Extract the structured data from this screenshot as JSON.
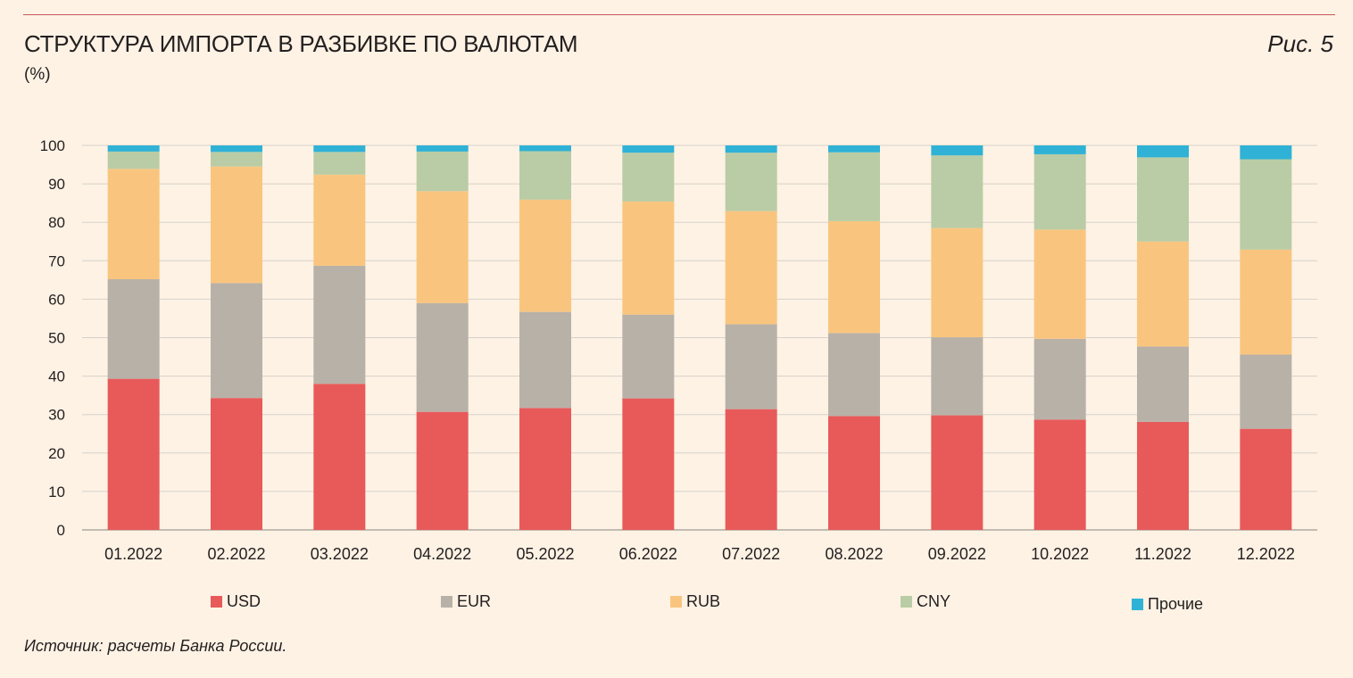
{
  "header": {
    "title": "СТРУКТУРА ИМПОРТА В РАЗБИВКЕ ПО ВАЛЮТАМ",
    "unit": "(%)",
    "figure_label": "Рис. 5"
  },
  "footer": {
    "source": "Источник: расчеты Банка России."
  },
  "colors": {
    "USD": "#e85a5a",
    "EUR": "#b8b1a8",
    "RUB": "#f9c57e",
    "CNY": "#bacca5",
    "Прочие": "#2fb2d6",
    "grid": "#d6d1cb",
    "background": "#fdf2e4"
  },
  "chart_data": {
    "type": "bar",
    "stacked": true,
    "categories": [
      "01.2022",
      "02.2022",
      "03.2022",
      "04.2022",
      "05.2022",
      "06.2022",
      "07.2022",
      "08.2022",
      "09.2022",
      "10.2022",
      "11.2022",
      "12.2022"
    ],
    "series": [
      {
        "name": "USD",
        "values": [
          39.3,
          34.3,
          38.0,
          30.7,
          31.7,
          34.2,
          31.4,
          29.6,
          29.8,
          28.7,
          28.1,
          26.3
        ]
      },
      {
        "name": "EUR",
        "values": [
          25.9,
          29.9,
          30.7,
          28.3,
          25.0,
          21.8,
          22.1,
          21.6,
          20.3,
          21.0,
          19.6,
          19.3
        ]
      },
      {
        "name": "RUB",
        "values": [
          28.7,
          30.3,
          23.7,
          29.1,
          29.2,
          29.4,
          29.4,
          29.1,
          28.4,
          28.4,
          27.3,
          27.3
        ]
      },
      {
        "name": "CNY",
        "values": [
          4.5,
          3.8,
          5.9,
          10.3,
          12.6,
          12.7,
          15.2,
          17.9,
          18.9,
          19.6,
          21.9,
          23.5
        ]
      },
      {
        "name": "Прочие",
        "values": [
          1.6,
          1.7,
          1.7,
          1.6,
          1.5,
          1.9,
          1.9,
          1.8,
          2.6,
          2.3,
          3.1,
          3.6
        ]
      }
    ],
    "ylim": [
      0,
      100
    ],
    "yticks": [
      0,
      10,
      20,
      30,
      40,
      50,
      60,
      70,
      80,
      90,
      100
    ],
    "grid": true,
    "legend_position": "bottom"
  }
}
